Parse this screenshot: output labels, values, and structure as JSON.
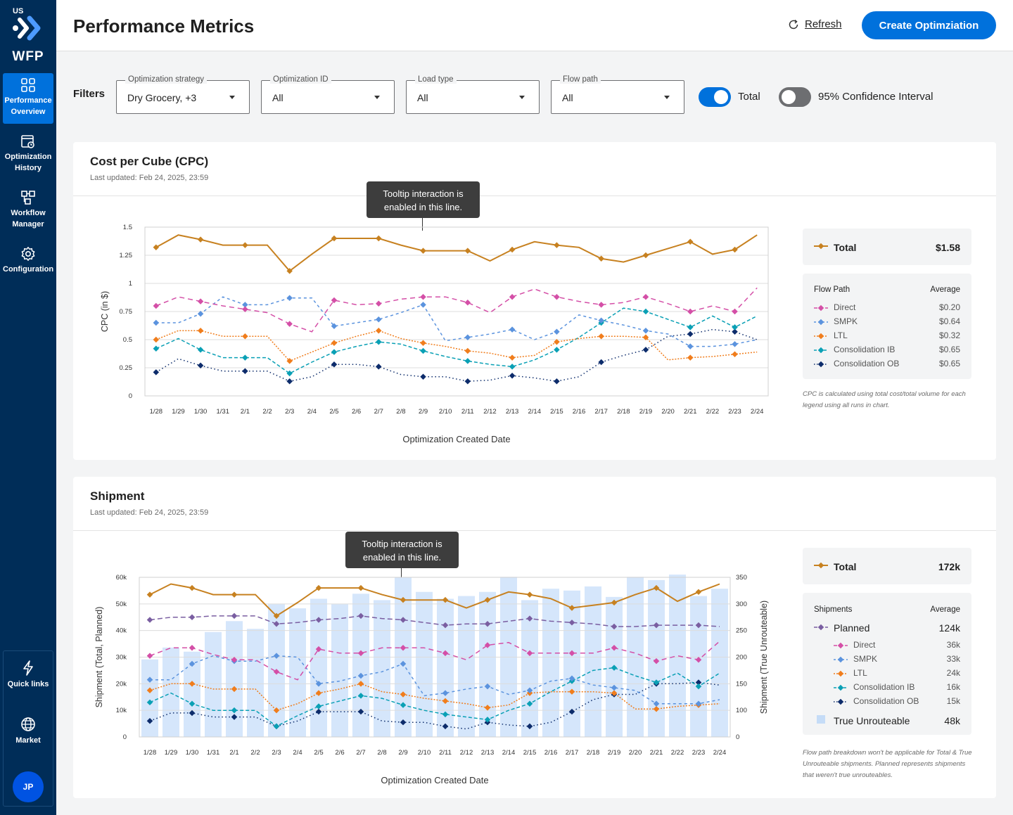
{
  "app": {
    "region": "US",
    "name": "WFP"
  },
  "nav": [
    {
      "label": "Performance Overview",
      "icon": "grid-icon",
      "active": true
    },
    {
      "label": "Optimization History",
      "icon": "history-icon",
      "active": false
    },
    {
      "label": "Workflow Manager",
      "icon": "workflow-icon",
      "active": false
    },
    {
      "label": "Configuration",
      "icon": "gear-icon",
      "active": false
    },
    {
      "label": "Quick links",
      "icon": "bolt-icon",
      "active": false
    },
    {
      "label": "Market",
      "icon": "globe-icon",
      "active": false
    }
  ],
  "user": {
    "initials": "JP"
  },
  "header": {
    "title": "Performance Metrics",
    "refresh_label": "Refresh",
    "create_label": "Create Optimziation"
  },
  "filters": {
    "label": "Filters",
    "selects": [
      {
        "label": "Optimization strategy",
        "value": "Dry Grocery, +3"
      },
      {
        "label": "Optimization ID",
        "value": "All"
      },
      {
        "label": "Load type",
        "value": "All"
      },
      {
        "label": "Flow path",
        "value": "All"
      }
    ],
    "toggles": [
      {
        "label": "Total",
        "on": true
      },
      {
        "label": "95% Confidence Interval",
        "on": false
      }
    ]
  },
  "colors": {
    "total": "#c78120",
    "direct": "#d44fa7",
    "smpk": "#5b93de",
    "ltl": "#f07d1c",
    "cib": "#0aa0b5",
    "cob": "#0d2c6b",
    "planned": "#7a5ea1",
    "bar": "#d5e6fb"
  },
  "cpc_card": {
    "title": "Cost per Cube (CPC)",
    "updated": "Last updated: Feb 24, 2025, 23:59",
    "tooltip": "Tooltip interaction is enabled in this line.",
    "legend": {
      "total_label": "Total",
      "total_value": "$1.58",
      "group_label": "Flow Path",
      "avg_label": "Average",
      "rows": [
        {
          "name": "Direct",
          "value": "$0.20"
        },
        {
          "name": "SMPK",
          "value": "$0.64"
        },
        {
          "name": "LTL",
          "value": "$0.32"
        },
        {
          "name": "Consolidation IB",
          "value": "$0.65"
        },
        {
          "name": "Consolidation OB",
          "value": "$0.65"
        }
      ],
      "note": "CPC is calculated using total cost/total volume for each legend using all runs in chart."
    }
  },
  "shipment_card": {
    "title": "Shipment",
    "updated": "Last updated: Feb 24, 2025, 23:59",
    "tooltip": "Tooltip interaction is enabled in this line.",
    "legend": {
      "total_label": "Total",
      "total_value": "172k",
      "group_label": "Shipments",
      "avg_label": "Average",
      "planned_label": "Planned",
      "planned_value": "124k",
      "rows": [
        {
          "name": "Direct",
          "value": "36k"
        },
        {
          "name": "SMPK",
          "value": "33k"
        },
        {
          "name": "LTL",
          "value": "24k"
        },
        {
          "name": "Consolidation IB",
          "value": "16k"
        },
        {
          "name": "Consolidation OB",
          "value": "15k"
        }
      ],
      "unroute_label": "True Unrouteable",
      "unroute_value": "48k",
      "note": "Flow path breakdown won't be applicable for Total & True Unrouteable shipments. Planned represents shipments that weren't true unrouteables."
    }
  },
  "chart_data": [
    {
      "type": "line",
      "title": "Cost per Cube (CPC)",
      "xlabel": "Optimization Created Date",
      "ylabel": "CPC (in $)",
      "ylim": [
        0,
        1.5
      ],
      "yticks": [
        "0",
        "0.25",
        "0.5",
        "0.75",
        "1",
        "1.25",
        "1.5"
      ],
      "categories": [
        "1/28",
        "1/29",
        "1/30",
        "1/31",
        "2/1",
        "2/2",
        "2/3",
        "2/4",
        "2/5",
        "2/6",
        "2/7",
        "2/8",
        "2/9",
        "2/10",
        "2/11",
        "2/12",
        "2/13",
        "2/14",
        "2/15",
        "2/16",
        "2/17",
        "2/18",
        "2/19",
        "2/20",
        "2/21",
        "2/22",
        "2/23",
        "2/24"
      ],
      "grid": true,
      "series": [
        {
          "name": "Total",
          "key": "total",
          "dash": "",
          "values": [
            1.32,
            1.43,
            1.39,
            1.34,
            1.34,
            1.34,
            1.11,
            1.26,
            1.4,
            1.4,
            1.4,
            1.34,
            1.29,
            1.29,
            1.29,
            1.2,
            1.3,
            1.37,
            1.34,
            1.32,
            1.22,
            1.19,
            1.25,
            1.31,
            1.37,
            1.26,
            1.3,
            1.43
          ]
        },
        {
          "name": "Direct",
          "key": "direct",
          "dash": "7,5",
          "values": [
            0.8,
            0.88,
            0.84,
            0.8,
            0.77,
            0.74,
            0.64,
            0.57,
            0.85,
            0.81,
            0.82,
            0.86,
            0.88,
            0.88,
            0.83,
            0.74,
            0.88,
            0.95,
            0.88,
            0.84,
            0.81,
            0.83,
            0.88,
            0.82,
            0.75,
            0.8,
            0.75,
            0.96
          ]
        },
        {
          "name": "SMPK",
          "key": "smpk",
          "dash": "4,4",
          "values": [
            0.65,
            0.65,
            0.73,
            0.88,
            0.81,
            0.81,
            0.87,
            0.87,
            0.62,
            0.65,
            0.68,
            0.74,
            0.81,
            0.49,
            0.52,
            0.55,
            0.59,
            0.5,
            0.57,
            0.72,
            0.67,
            0.63,
            0.58,
            0.55,
            0.44,
            0.44,
            0.46,
            0.5
          ]
        },
        {
          "name": "LTL",
          "key": "ltl",
          "dash": "2,2",
          "values": [
            0.5,
            0.58,
            0.58,
            0.53,
            0.53,
            0.53,
            0.31,
            0.39,
            0.47,
            0.53,
            0.58,
            0.51,
            0.47,
            0.44,
            0.4,
            0.38,
            0.34,
            0.36,
            0.48,
            0.51,
            0.53,
            0.53,
            0.52,
            0.32,
            0.34,
            0.35,
            0.37,
            0.39
          ]
        },
        {
          "name": "Consolidation IB",
          "key": "cib",
          "dash": "5,3",
          "values": [
            0.42,
            0.51,
            0.41,
            0.34,
            0.34,
            0.34,
            0.2,
            0.3,
            0.39,
            0.44,
            0.48,
            0.46,
            0.4,
            0.35,
            0.31,
            0.28,
            0.26,
            0.32,
            0.41,
            0.52,
            0.65,
            0.78,
            0.75,
            0.68,
            0.61,
            0.71,
            0.61,
            0.71
          ]
        },
        {
          "name": "Consolidation OB",
          "key": "cob",
          "dash": "1.5,3.5",
          "values": [
            0.21,
            0.33,
            0.27,
            0.22,
            0.22,
            0.22,
            0.13,
            0.17,
            0.28,
            0.28,
            0.26,
            0.19,
            0.17,
            0.17,
            0.13,
            0.14,
            0.18,
            0.16,
            0.13,
            0.17,
            0.3,
            0.36,
            0.41,
            0.53,
            0.55,
            0.59,
            0.57,
            0.5
          ]
        }
      ]
    },
    {
      "type": "line",
      "title": "Shipment",
      "xlabel": "Optimization Created Date",
      "ylabel": "Shipment (Total, Planned)",
      "y2label": "Shipment (True Unrouteable)",
      "ylim": [
        0,
        60000
      ],
      "y2lim": [
        0,
        350
      ],
      "yticks": [
        "0",
        "10k",
        "20k",
        "30k",
        "40k",
        "50k",
        "60k"
      ],
      "y2ticks": [
        "0",
        "100",
        "150",
        "200",
        "250",
        "300",
        "350"
      ],
      "categories": [
        "1/28",
        "1/29",
        "1/30",
        "1/31",
        "2/1",
        "2/2",
        "2/3",
        "2/4",
        "2/5",
        "2/6",
        "2/7",
        "2/8",
        "2/9",
        "2/10",
        "2/11",
        "2/12",
        "2/13",
        "2/14",
        "2/15",
        "2/16",
        "2/17",
        "2/18",
        "2/19",
        "2/20",
        "2/21",
        "2/22",
        "2/23",
        "2/24"
      ],
      "grid": true,
      "bars": {
        "name": "True Unrouteable",
        "axis": "y2",
        "values": [
          170,
          196,
          187,
          230,
          254,
          237,
          291,
          282,
          303,
          291,
          314,
          300,
          350,
          318,
          303,
          309,
          318,
          351,
          300,
          325,
          321,
          330,
          307,
          351,
          344,
          356,
          309,
          325
        ]
      },
      "series": [
        {
          "name": "Total",
          "key": "total",
          "dash": "",
          "values": [
            53500,
            57500,
            56000,
            53500,
            53500,
            53500,
            45500,
            50500,
            56000,
            56000,
            56000,
            53500,
            51500,
            51500,
            51500,
            48500,
            51500,
            54500,
            53500,
            52000,
            48500,
            49500,
            50500,
            53500,
            56000,
            51000,
            54500,
            57500
          ]
        },
        {
          "name": "Planned",
          "key": "planned",
          "dash": "7,4",
          "values": [
            44000,
            45000,
            45000,
            45500,
            45500,
            45500,
            42500,
            43000,
            44000,
            44500,
            45500,
            44500,
            44000,
            43000,
            42000,
            42500,
            42500,
            43500,
            44500,
            43500,
            43000,
            42500,
            41500,
            41500,
            42000,
            42000,
            42000,
            41500
          ]
        },
        {
          "name": "Direct",
          "key": "direct",
          "dash": "7,5",
          "values": [
            30500,
            33500,
            33500,
            31000,
            29000,
            29000,
            24500,
            21500,
            33000,
            31500,
            31500,
            33500,
            33500,
            33500,
            31500,
            29000,
            34500,
            35500,
            31500,
            31500,
            31500,
            31500,
            33500,
            31500,
            28500,
            30500,
            29000,
            36000
          ]
        },
        {
          "name": "SMPK",
          "key": "smpk",
          "dash": "4,4",
          "values": [
            21500,
            21500,
            27500,
            30500,
            28500,
            28500,
            30500,
            30000,
            20000,
            21000,
            23000,
            24500,
            27500,
            15500,
            16500,
            18000,
            19000,
            16000,
            17500,
            21000,
            22000,
            19500,
            18500,
            17500,
            12500,
            12500,
            12500,
            14000
          ]
        },
        {
          "name": "LTL",
          "key": "ltl",
          "dash": "2,2",
          "values": [
            17500,
            20000,
            20000,
            18000,
            18000,
            18000,
            10000,
            12500,
            16500,
            18000,
            20000,
            17000,
            16000,
            14500,
            13500,
            12500,
            11000,
            12000,
            16500,
            17000,
            17000,
            17000,
            16500,
            10500,
            10500,
            11500,
            12000,
            12500
          ]
        },
        {
          "name": "Consolidation IB",
          "key": "cib",
          "dash": "5,3",
          "values": [
            13000,
            16500,
            12500,
            10000,
            10000,
            10000,
            4000,
            8000,
            11500,
            13500,
            15500,
            14500,
            12000,
            10000,
            8500,
            7500,
            6500,
            10000,
            12500,
            17000,
            21000,
            25000,
            26000,
            23000,
            20500,
            24000,
            19000,
            24000
          ]
        },
        {
          "name": "Consolidation OB",
          "key": "cob",
          "dash": "1.5,3.5",
          "values": [
            6000,
            9000,
            9000,
            7500,
            7500,
            7500,
            4000,
            6000,
            9500,
            9500,
            9500,
            6000,
            5500,
            5500,
            4000,
            3000,
            5500,
            4500,
            4000,
            5500,
            9500,
            14000,
            16000,
            16000,
            20000,
            20000,
            20500,
            19500
          ]
        }
      ]
    }
  ]
}
